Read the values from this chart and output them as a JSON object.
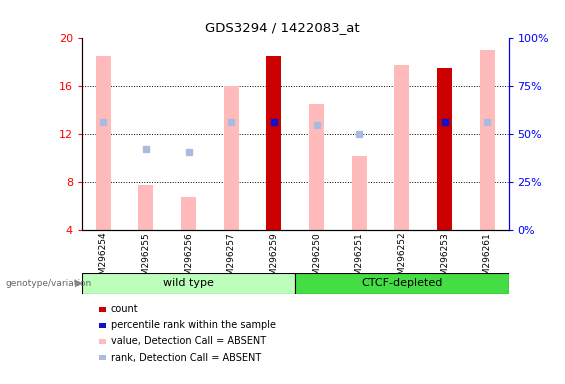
{
  "title": "GDS3294 / 1422083_at",
  "samples": [
    "GSM296254",
    "GSM296255",
    "GSM296256",
    "GSM296257",
    "GSM296259",
    "GSM296250",
    "GSM296251",
    "GSM296252",
    "GSM296253",
    "GSM296261"
  ],
  "group1_indices": [
    0,
    1,
    2,
    3,
    4
  ],
  "group2_indices": [
    5,
    6,
    7,
    8,
    9
  ],
  "group1_label": "wild type",
  "group2_label": "CTCF-depleted",
  "value_bars": [
    18.5,
    7.8,
    6.8,
    16.0,
    null,
    14.5,
    10.2,
    17.8,
    null,
    19.0
  ],
  "rank_dots_absent": [
    13.0,
    10.8,
    10.5,
    13.0,
    null,
    12.8,
    12.0,
    null,
    null,
    13.0
  ],
  "count_bars": [
    null,
    null,
    null,
    null,
    18.5,
    null,
    null,
    null,
    17.5,
    null
  ],
  "count_rank_dots": [
    null,
    null,
    null,
    null,
    13.0,
    null,
    null,
    null,
    13.0,
    null
  ],
  "ylim_left": [
    4,
    20
  ],
  "ylim_right": [
    0,
    100
  ],
  "yticks_left": [
    4,
    8,
    12,
    16,
    20
  ],
  "ytick_labels_left": [
    "4",
    "8",
    "12",
    "16",
    "20"
  ],
  "yticks_right": [
    0,
    25,
    50,
    75,
    100
  ],
  "ytick_labels_right": [
    "0%",
    "25%",
    "50%",
    "75%",
    "100%"
  ],
  "color_count": "#cc0000",
  "color_count_rank": "#1111cc",
  "color_value_absent": "#ffbbbb",
  "color_rank_absent": "#aabbdd",
  "color_group1_bg": "#bbffbb",
  "color_group2_bg": "#44dd44",
  "bar_width": 0.35,
  "legend_items": [
    {
      "color": "#cc0000",
      "label": "count"
    },
    {
      "color": "#1111cc",
      "label": "percentile rank within the sample"
    },
    {
      "color": "#ffbbbb",
      "label": "value, Detection Call = ABSENT"
    },
    {
      "color": "#aabbdd",
      "label": "rank, Detection Call = ABSENT"
    }
  ]
}
